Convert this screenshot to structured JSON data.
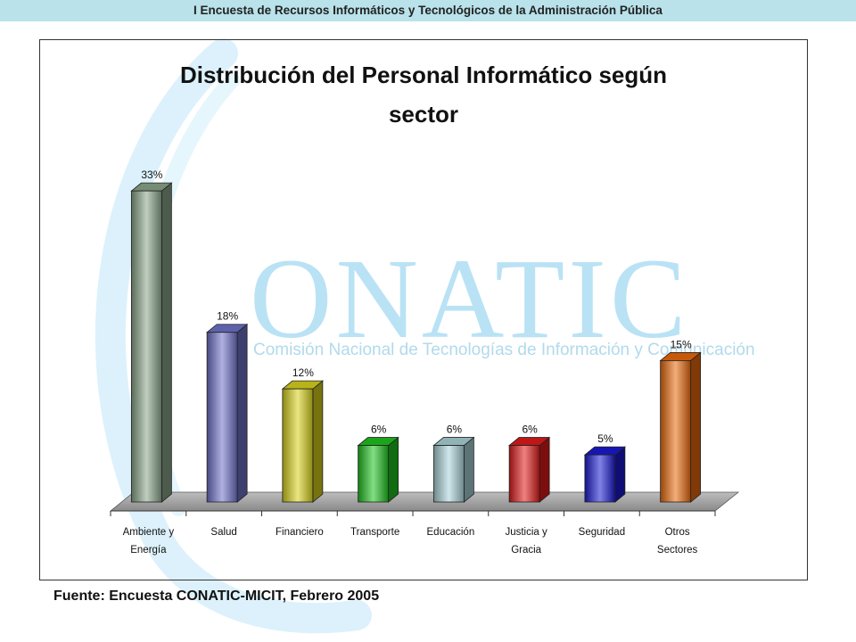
{
  "header": {
    "title": "I Encuesta de Recursos Informáticos y Tecnológicos de la Administración Pública"
  },
  "watermark": {
    "logo_text": "ONATIC",
    "logo_subtitle": "Comisión Nacional de Tecnologías de Información y Comunicación",
    "color": "#a9dcf3"
  },
  "chart_data": {
    "type": "bar",
    "title": "Distribución del Personal Informático según sector",
    "title_lines": [
      "Distribución del Personal Informático según",
      "sector"
    ],
    "categories": [
      [
        "Ambiente y",
        "Energía"
      ],
      [
        "Salud"
      ],
      [
        "Financiero"
      ],
      [
        "Transporte"
      ],
      [
        "Educación"
      ],
      [
        "Justicia y",
        "Gracia"
      ],
      [
        "Seguridad"
      ],
      [
        "Otros",
        "Sectores"
      ]
    ],
    "values": [
      33,
      18,
      12,
      6,
      6,
      6,
      5,
      15
    ],
    "data_labels": [
      "33%",
      "18%",
      "12%",
      "6%",
      "6%",
      "6%",
      "5%",
      "15%"
    ],
    "colors": [
      "#8aa58a",
      "#6f72c9",
      "#d9d21c",
      "#1fc31f",
      "#a9d3d9",
      "#e11a1a",
      "#1a1ad4",
      "#ea6a0c"
    ],
    "ylim": [
      0,
      35
    ],
    "grid": false,
    "legend": "none"
  },
  "footer": {
    "source": "Fuente: Encuesta CONATIC-MICIT, Febrero 2005"
  }
}
